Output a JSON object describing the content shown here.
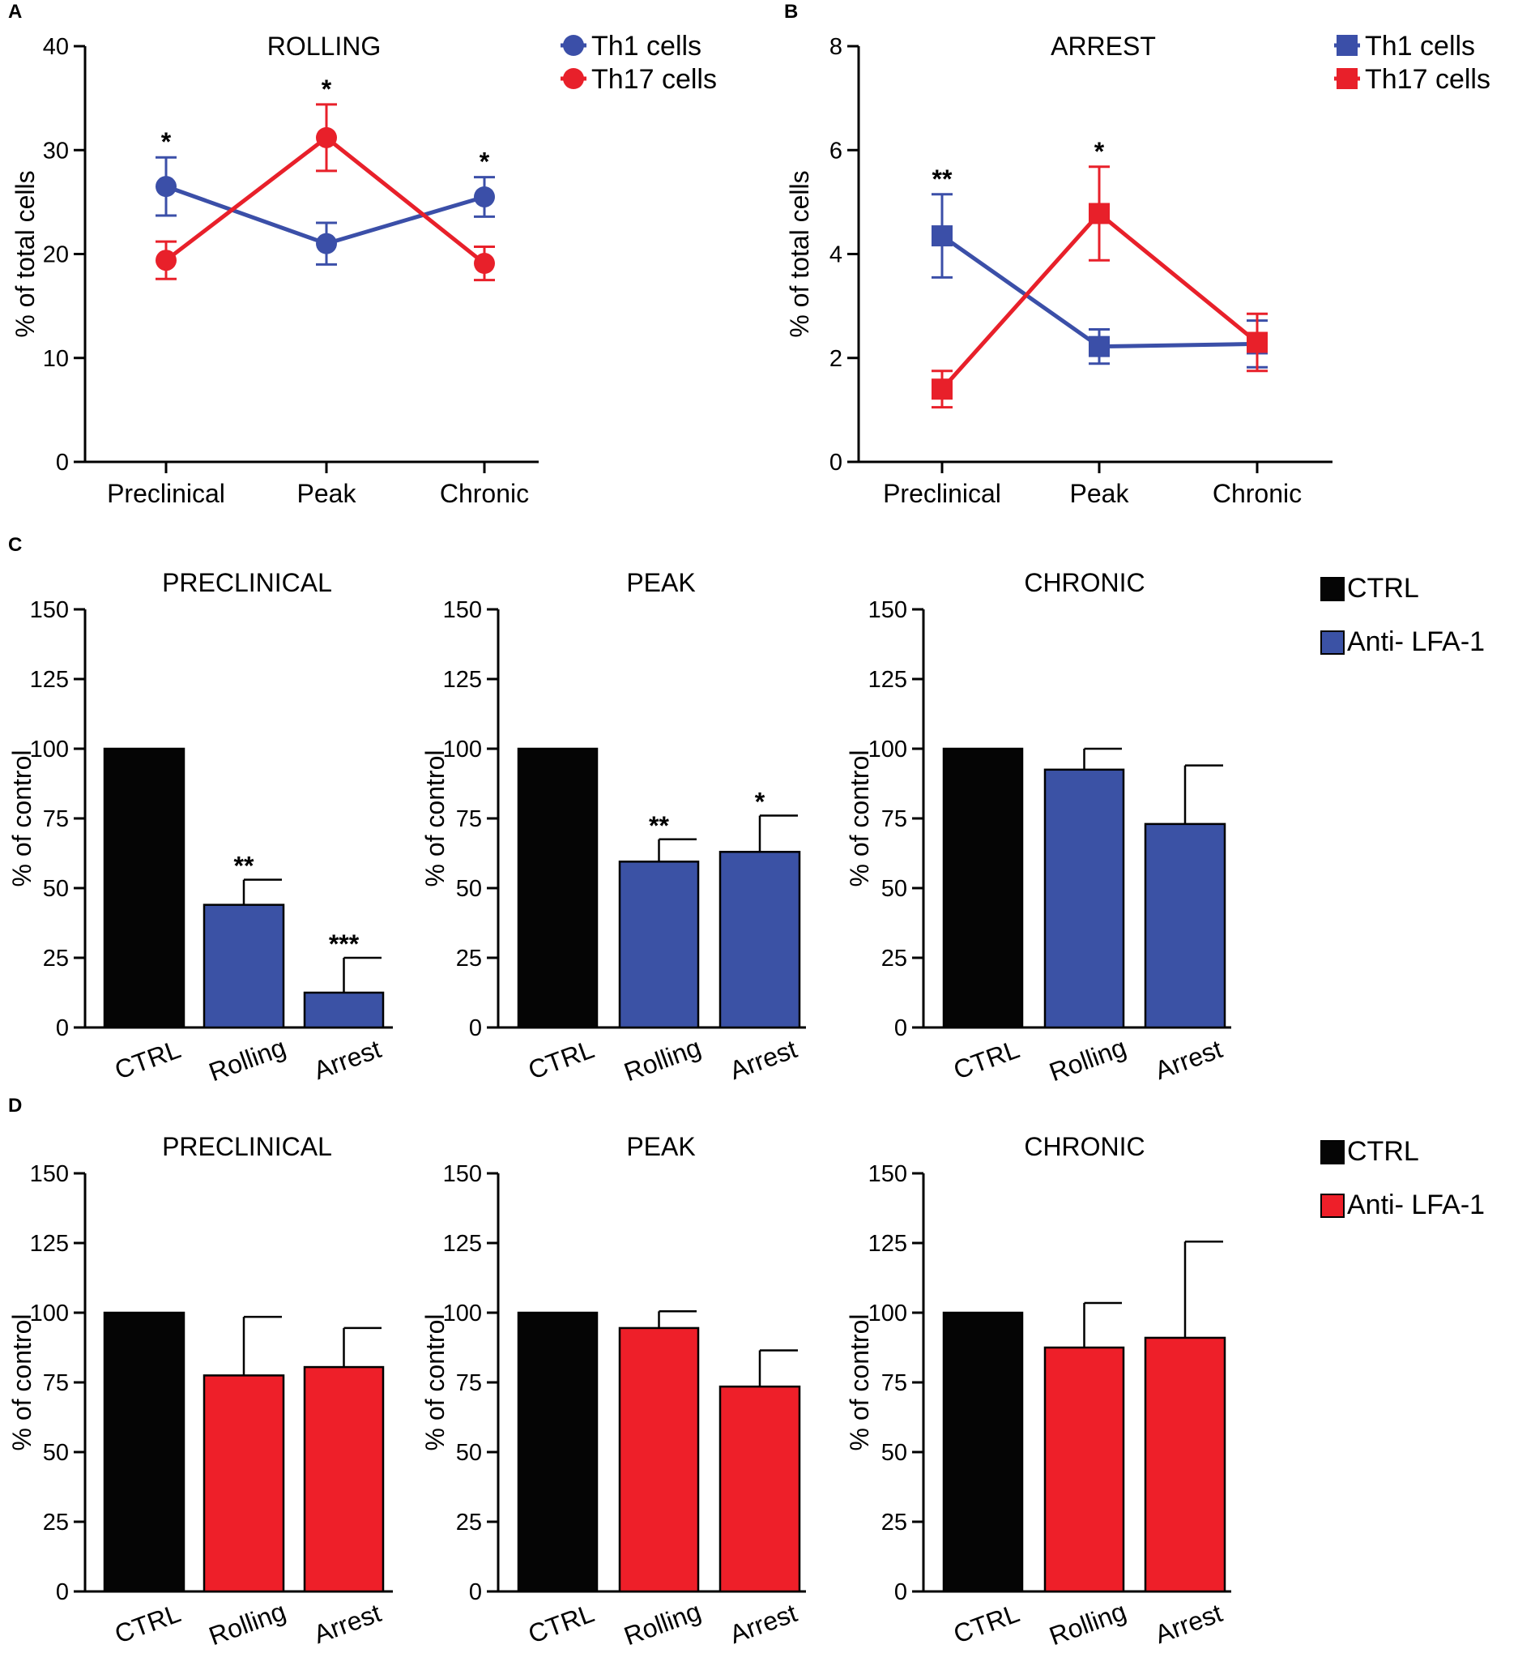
{
  "chart_data": [
    {
      "panel": "A",
      "type": "line",
      "title": "ROLLING",
      "ylabel": "% of total cells",
      "xlabel": "",
      "ylim": [
        0,
        40
      ],
      "yticks": [
        0,
        10,
        20,
        30,
        40
      ],
      "categories": [
        "Preclinical",
        "Peak",
        "Chronic"
      ],
      "marker": "circle",
      "series": [
        {
          "name": "Th1 cells",
          "color": "#3b4fa8",
          "values": [
            26.5,
            21.0,
            25.5
          ],
          "errors": [
            2.8,
            2.0,
            1.9
          ]
        },
        {
          "name": "Th17 cells",
          "color": "#e8202a",
          "values": [
            19.4,
            31.2,
            19.1
          ],
          "errors": [
            1.8,
            3.2,
            1.6
          ]
        }
      ],
      "annotations": [
        {
          "category": "Preclinical",
          "text": "*"
        },
        {
          "category": "Peak",
          "text": "*"
        },
        {
          "category": "Chronic",
          "text": "*"
        }
      ]
    },
    {
      "panel": "B",
      "type": "line",
      "title": "ARREST",
      "ylabel": "% of total cells",
      "xlabel": "",
      "ylim": [
        0,
        8
      ],
      "yticks": [
        0,
        2,
        4,
        6,
        8
      ],
      "categories": [
        "Preclinical",
        "Peak",
        "Chronic"
      ],
      "marker": "square",
      "series": [
        {
          "name": "Th1 cells",
          "color": "#3b4fa8",
          "values": [
            4.35,
            2.22,
            2.27
          ],
          "errors": [
            0.8,
            0.33,
            0.45
          ]
        },
        {
          "name": "Th17 cells",
          "color": "#e8202a",
          "values": [
            1.4,
            4.78,
            2.3
          ],
          "errors": [
            0.35,
            0.9,
            0.55
          ]
        }
      ],
      "annotations": [
        {
          "category": "Preclinical",
          "text": "**"
        },
        {
          "category": "Peak",
          "text": "*"
        }
      ]
    },
    {
      "panel": "C",
      "type": "bar",
      "title": "PRECLINICAL",
      "ylabel": "% of control",
      "ylim": [
        0,
        150
      ],
      "yticks": [
        0,
        25,
        50,
        75,
        100,
        125,
        150
      ],
      "categories": [
        "CTRL",
        "Rolling",
        "Arrest"
      ],
      "values": [
        100,
        44,
        12.5
      ],
      "errors": [
        0,
        9,
        12.5
      ],
      "colors": [
        "#050505",
        "#3b52a5",
        "#3b52a5"
      ],
      "annotations": [
        "",
        "**",
        "***"
      ]
    },
    {
      "panel": "",
      "type": "bar",
      "title": "PEAK",
      "ylabel": "% of control",
      "ylim": [
        0,
        150
      ],
      "yticks": [
        0,
        25,
        50,
        75,
        100,
        125,
        150
      ],
      "categories": [
        "CTRL",
        "Rolling",
        "Arrest"
      ],
      "values": [
        100,
        59.5,
        63
      ],
      "errors": [
        0,
        8,
        13
      ],
      "colors": [
        "#050505",
        "#3b52a5",
        "#3b52a5"
      ],
      "annotations": [
        "",
        "**",
        "*"
      ]
    },
    {
      "panel": "",
      "type": "bar",
      "title": "CHRONIC",
      "ylabel": "% of control",
      "ylim": [
        0,
        150
      ],
      "yticks": [
        0,
        25,
        50,
        75,
        100,
        125,
        150
      ],
      "categories": [
        "CTRL",
        "Rolling",
        "Arrest"
      ],
      "values": [
        100,
        92.5,
        73
      ],
      "errors": [
        0,
        7.5,
        21
      ],
      "colors": [
        "#050505",
        "#3b52a5",
        "#3b52a5"
      ],
      "annotations": [
        "",
        "",
        ""
      ]
    },
    {
      "panel": "D",
      "type": "bar",
      "title": "PRECLINICAL",
      "ylabel": "% of control",
      "ylim": [
        0,
        150
      ],
      "yticks": [
        0,
        25,
        50,
        75,
        100,
        125,
        150
      ],
      "categories": [
        "CTRL",
        "Rolling",
        "Arrest"
      ],
      "values": [
        100,
        77.5,
        80.5
      ],
      "errors": [
        0,
        21,
        14
      ],
      "colors": [
        "#050505",
        "#ee1f29",
        "#ee1f29"
      ],
      "annotations": [
        "",
        "",
        ""
      ]
    },
    {
      "panel": "",
      "type": "bar",
      "title": "PEAK",
      "ylabel": "% of control",
      "ylim": [
        0,
        150
      ],
      "yticks": [
        0,
        25,
        50,
        75,
        100,
        125,
        150
      ],
      "categories": [
        "CTRL",
        "Rolling",
        "Arrest"
      ],
      "values": [
        100,
        94.5,
        73.5
      ],
      "errors": [
        0,
        6,
        13
      ],
      "colors": [
        "#050505",
        "#ee1f29",
        "#ee1f29"
      ],
      "annotations": [
        "",
        "",
        ""
      ]
    },
    {
      "panel": "",
      "type": "bar",
      "title": "CHRONIC",
      "ylabel": "% of control",
      "ylim": [
        0,
        150
      ],
      "yticks": [
        0,
        25,
        50,
        75,
        100,
        125,
        150
      ],
      "categories": [
        "CTRL",
        "Rolling",
        "Arrest"
      ],
      "values": [
        100,
        87.5,
        91
      ],
      "errors": [
        0,
        16,
        34.5
      ],
      "colors": [
        "#050505",
        "#ee1f29",
        "#ee1f29"
      ],
      "annotations": [
        "",
        "",
        ""
      ]
    }
  ],
  "legends": {
    "A": [
      {
        "label": "Th1 cells",
        "color": "#3b4fa8",
        "marker": "circle"
      },
      {
        "label": "Th17 cells",
        "color": "#e8202a",
        "marker": "circle"
      }
    ],
    "B": [
      {
        "label": "Th1 cells",
        "color": "#3b4fa8",
        "marker": "square"
      },
      {
        "label": "Th17 cells",
        "color": "#e8202a",
        "marker": "square"
      }
    ],
    "C": [
      {
        "label": "CTRL",
        "color": "#050505"
      },
      {
        "label": "Anti- LFA-1",
        "color": "#3b52a5"
      }
    ],
    "D": [
      {
        "label": "CTRL",
        "color": "#050505"
      },
      {
        "label": "Anti- LFA-1",
        "color": "#ee1f29"
      }
    ]
  }
}
